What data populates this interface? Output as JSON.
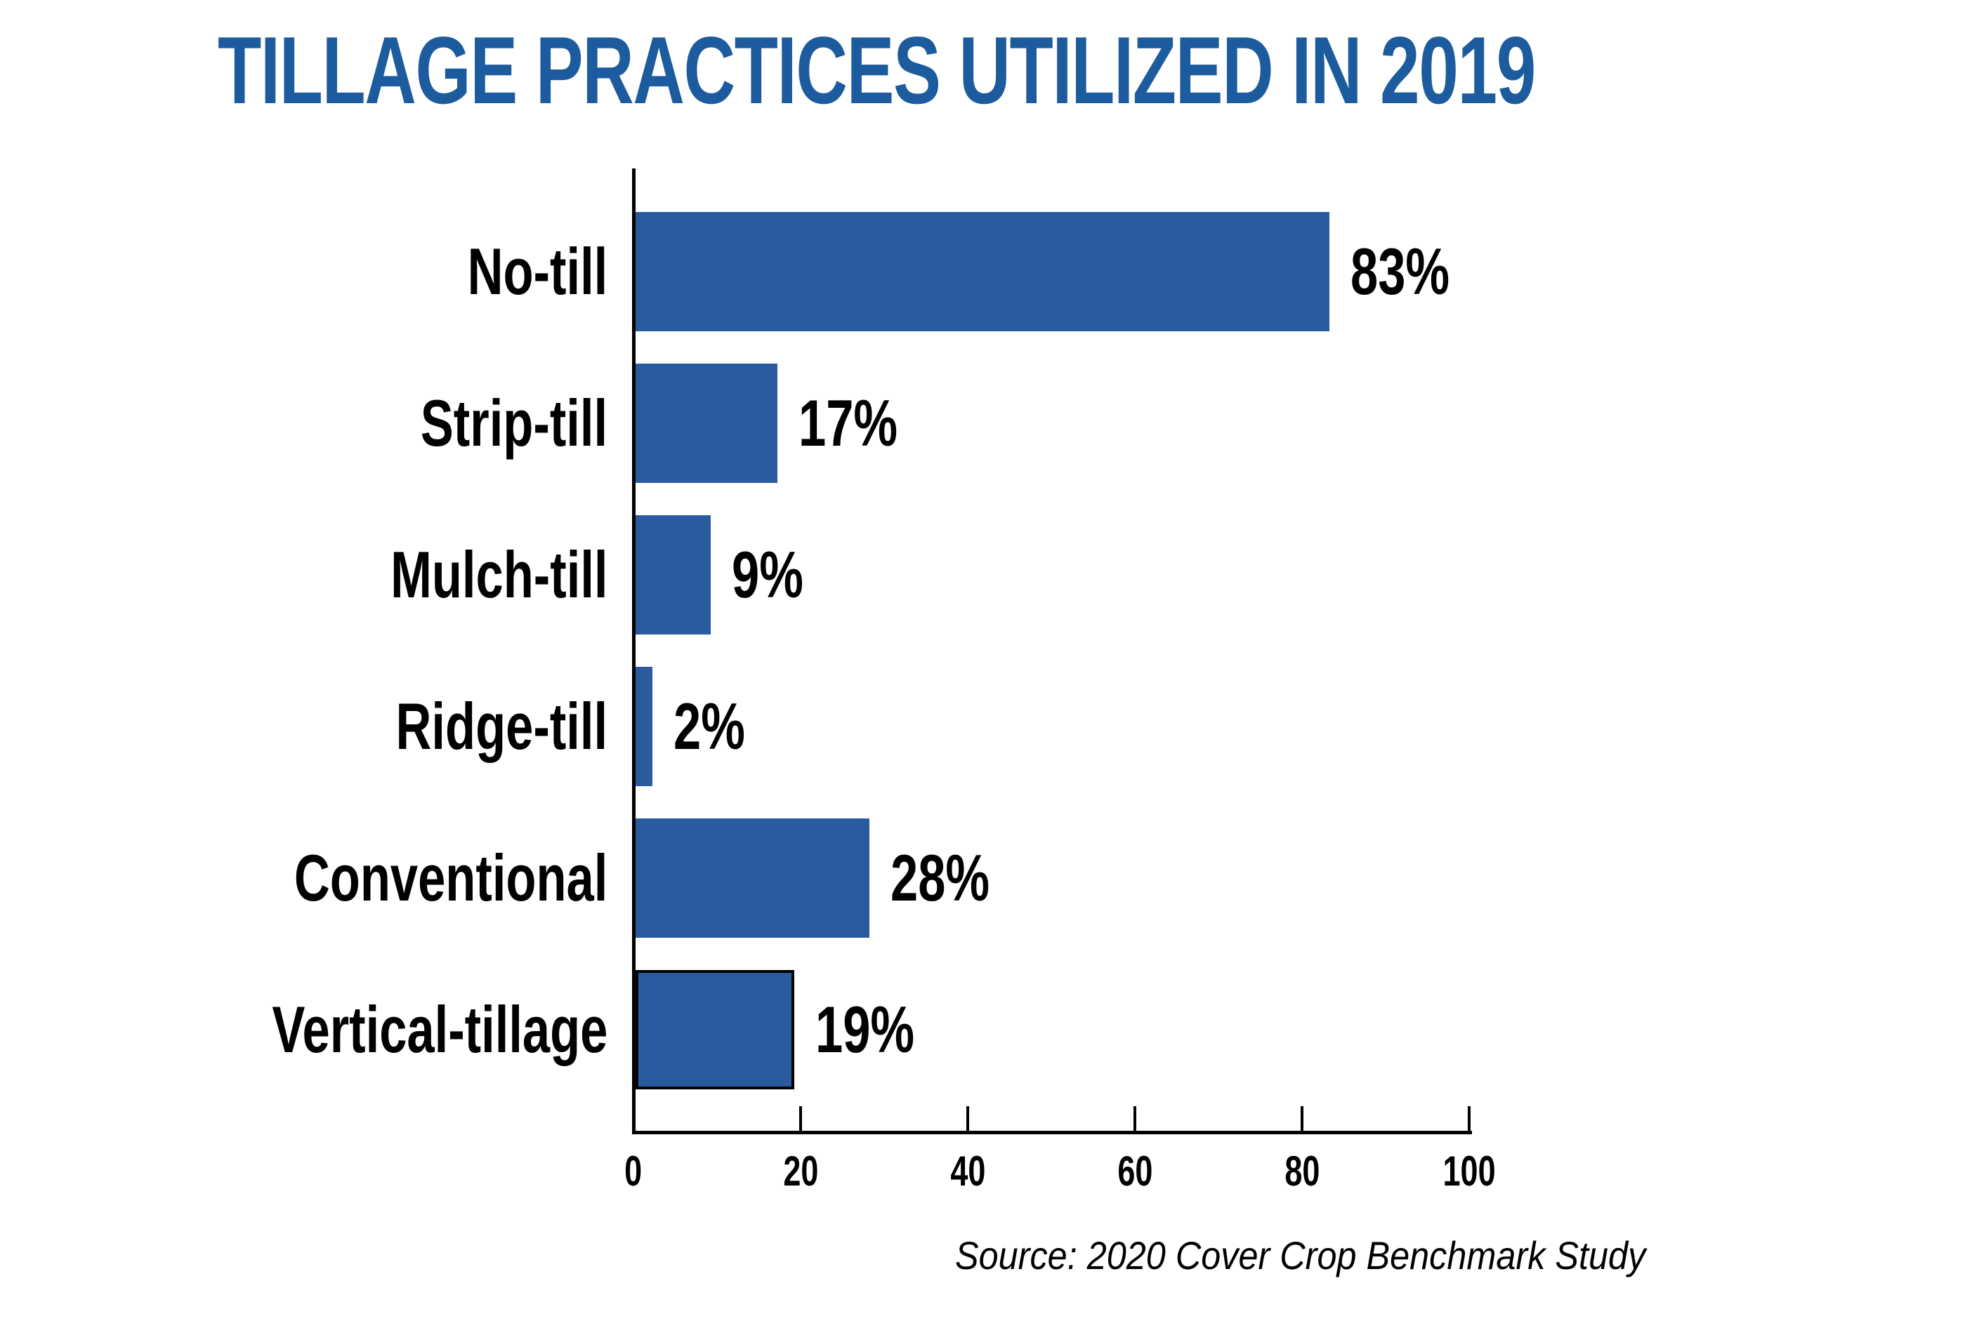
{
  "title": "TILLAGE PRACTICES UTILIZED IN 2019",
  "source_note": "Source: 2020 Cover Crop Benchmark Study",
  "colors": {
    "title_text": "#1C5C9E",
    "bar_fill": "#295B9E",
    "axis": "#000000",
    "label_text": "#000000",
    "outlined_bar_border": "#000000"
  },
  "chart_data": {
    "type": "bar",
    "orientation": "horizontal",
    "title": "TILLAGE PRACTICES UTILIZED IN 2019",
    "categories": [
      "No-till",
      "Strip-till",
      "Mulch-till",
      "Ridge-till",
      "Conventional",
      "Vertical-tillage"
    ],
    "values": [
      83,
      17,
      9,
      2,
      28,
      19
    ],
    "value_labels": [
      "83%",
      "17%",
      "9%",
      "2%",
      "28%",
      "19%"
    ],
    "bar_outlined": [
      false,
      false,
      false,
      false,
      false,
      true
    ],
    "xlabel": "",
    "ylabel": "",
    "xlim": [
      0,
      100
    ],
    "xticks": [
      0,
      20,
      40,
      60,
      80,
      100
    ],
    "xtick_labels": [
      "0",
      "20",
      "40",
      "60",
      "80",
      "100"
    ],
    "grid": false,
    "legend": "none",
    "source": "Source: 2020 Cover Crop Benchmark Study"
  }
}
